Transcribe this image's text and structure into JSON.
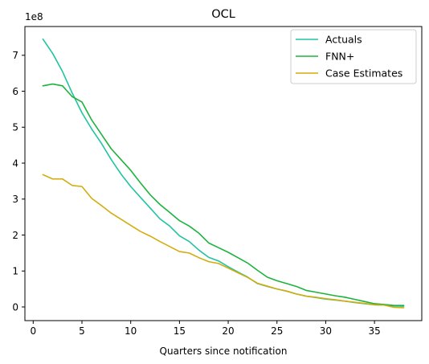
{
  "chart_data": {
    "type": "line",
    "title": "OCL",
    "xlabel": "Quarters since notification",
    "ylabel": "",
    "y_offset_label": "1e8",
    "xlim": [
      -0.85,
      39.85
    ],
    "ylim": [
      -0.38,
      7.8
    ],
    "y_unit_scale": 100000000,
    "xticks": [
      0,
      5,
      10,
      15,
      20,
      25,
      30,
      35
    ],
    "yticks": [
      0,
      1,
      2,
      3,
      4,
      5,
      6,
      7
    ],
    "grid": false,
    "legend_position": "top-right",
    "x": [
      1,
      2,
      3,
      4,
      5,
      6,
      7,
      8,
      9,
      10,
      11,
      12,
      13,
      14,
      15,
      16,
      17,
      18,
      19,
      20,
      21,
      22,
      23,
      24,
      25,
      26,
      27,
      28,
      29,
      30,
      31,
      32,
      33,
      34,
      35,
      36,
      37,
      38
    ],
    "series": [
      {
        "name": "Actuals",
        "color": "#20c4a0",
        "values": [
          7.45,
          7.05,
          6.55,
          5.95,
          5.4,
          4.95,
          4.55,
          4.1,
          3.7,
          3.35,
          3.05,
          2.75,
          2.45,
          2.25,
          1.98,
          1.82,
          1.58,
          1.38,
          1.28,
          1.12,
          0.97,
          0.83,
          0.65,
          0.57,
          0.5,
          0.44,
          0.36,
          0.3,
          0.26,
          0.22,
          0.19,
          0.16,
          0.12,
          0.09,
          0.06,
          0.05,
          0.03,
          0.02
        ]
      },
      {
        "name": "FNN+",
        "color": "#1db33c",
        "values": [
          6.15,
          6.2,
          6.15,
          5.85,
          5.7,
          5.2,
          4.8,
          4.4,
          4.1,
          3.8,
          3.45,
          3.12,
          2.85,
          2.63,
          2.4,
          2.25,
          2.05,
          1.78,
          1.65,
          1.52,
          1.37,
          1.22,
          1.02,
          0.83,
          0.73,
          0.65,
          0.57,
          0.46,
          0.41,
          0.36,
          0.31,
          0.27,
          0.21,
          0.15,
          0.09,
          0.07,
          0.04,
          0.04
        ]
      },
      {
        "name": "Case Estimates",
        "color": "#d4ac0d",
        "values": [
          3.68,
          3.56,
          3.56,
          3.38,
          3.35,
          3.02,
          2.82,
          2.61,
          2.44,
          2.27,
          2.1,
          1.97,
          1.82,
          1.68,
          1.54,
          1.5,
          1.37,
          1.26,
          1.21,
          1.08,
          0.95,
          0.82,
          0.66,
          0.58,
          0.5,
          0.44,
          0.36,
          0.3,
          0.27,
          0.23,
          0.2,
          0.16,
          0.13,
          0.1,
          0.06,
          0.05,
          -0.01,
          -0.02
        ]
      }
    ]
  }
}
